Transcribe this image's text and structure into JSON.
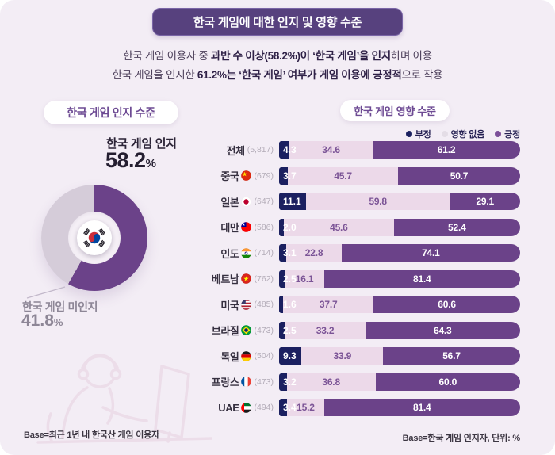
{
  "banner": {
    "title": "한국 게임에 대한 인지 및 영향 수준"
  },
  "subtitle": {
    "line1": [
      {
        "text": "한국 게임 이용자 중 ",
        "bold": false
      },
      {
        "text": "과반 수 이상(58.2%)이 ‘한국 게임’을 인지",
        "bold": true
      },
      {
        "text": "하며 이용",
        "bold": false
      }
    ],
    "line2": [
      {
        "text": "한국 게임을 인지한 ",
        "bold": false
      },
      {
        "text": "61.2%는 ‘한국 게임’ 여부가 게임 이용에 긍정적",
        "bold": true
      },
      {
        "text": "으로 작용",
        "bold": false
      }
    ]
  },
  "left": {
    "header": "한국 게임 인지 수준",
    "donut": {
      "aware_label": "한국 게임 인지",
      "aware_value": "58.2",
      "unaware_label": "한국 게임 미인지",
      "unaware_value": "41.8",
      "percent_sign": "%",
      "aware_pct": 58.2,
      "unaware_pct": 41.8,
      "center_icon": "korea-flag-icon"
    },
    "base_note": "Base=최근 1년 내 한국산 게임 이용자"
  },
  "right": {
    "header": "한국 게임 영향 수준",
    "legend": [
      {
        "label": "부정",
        "color": "#1b2060"
      },
      {
        "label": "영향 없음",
        "color": "#e4dde6"
      },
      {
        "label": "긍정",
        "color": "#7c4f99"
      }
    ],
    "rows": [
      {
        "label": "전체",
        "flag": null,
        "count": "(5,817)",
        "values": [
          4.3,
          34.6,
          61.2
        ]
      },
      {
        "label": "중국",
        "flag": "china",
        "count": "(679)",
        "values": [
          3.7,
          45.7,
          50.7
        ]
      },
      {
        "label": "일본",
        "flag": "japan",
        "count": "(647)",
        "values": [
          11.1,
          59.8,
          29.1
        ]
      },
      {
        "label": "대만",
        "flag": "taiwan",
        "count": "(586)",
        "values": [
          2.0,
          45.6,
          52.4
        ]
      },
      {
        "label": "인도",
        "flag": "india",
        "count": "(714)",
        "values": [
          3.1,
          22.8,
          74.1
        ]
      },
      {
        "label": "베트남",
        "flag": "vietnam",
        "count": "(762)",
        "values": [
          2.5,
          16.1,
          81.4
        ]
      },
      {
        "label": "미국",
        "flag": "usa",
        "count": "(485)",
        "values": [
          1.6,
          37.7,
          60.6
        ]
      },
      {
        "label": "브라질",
        "flag": "brazil",
        "count": "(473)",
        "values": [
          2.5,
          33.2,
          64.3
        ]
      },
      {
        "label": "독일",
        "flag": "germany",
        "count": "(504)",
        "values": [
          9.3,
          33.9,
          56.7
        ]
      },
      {
        "label": "프랑스",
        "flag": "france",
        "count": "(473)",
        "values": [
          3.2,
          36.8,
          60.0
        ]
      },
      {
        "label": "UAE",
        "flag": "uae",
        "count": "(494)",
        "values": [
          3.4,
          15.2,
          81.4
        ]
      }
    ],
    "base_note": "Base=한국 게임 인지자, 단위: %"
  },
  "colors": {
    "negative": "#1b2060",
    "no_effect": "#ecd9e9",
    "positive": "#6b4289",
    "donut_aware": "#6b4289",
    "donut_unaware": "#d5ccd9",
    "banner_bg": "#57417e",
    "accent_purple": "#6d4a93"
  },
  "chart_data": [
    {
      "type": "pie",
      "title": "한국 게임 인지 수준",
      "labels": [
        "한국 게임 인지",
        "한국 게임 미인지"
      ],
      "values": [
        58.2,
        41.8
      ],
      "unit": "%",
      "note": "donut with Korean flag in center"
    },
    {
      "type": "bar",
      "orientation": "horizontal",
      "stacked": true,
      "title": "한국 게임 영향 수준",
      "categories": [
        "전체 (5,817)",
        "중국 (679)",
        "일본 (647)",
        "대만 (586)",
        "인도 (714)",
        "베트남 (762)",
        "미국 (485)",
        "브라질 (473)",
        "독일 (504)",
        "프랑스 (473)",
        "UAE (494)"
      ],
      "series": [
        {
          "name": "부정",
          "values": [
            4.3,
            3.7,
            11.1,
            2.0,
            3.1,
            2.5,
            1.6,
            2.5,
            9.3,
            3.2,
            3.4
          ]
        },
        {
          "name": "영향 없음",
          "values": [
            34.6,
            45.7,
            59.8,
            45.6,
            22.8,
            16.1,
            37.7,
            33.2,
            33.9,
            36.8,
            15.2
          ]
        },
        {
          "name": "긍정",
          "values": [
            61.2,
            50.7,
            29.1,
            52.4,
            74.1,
            81.4,
            60.6,
            64.3,
            56.7,
            60.0,
            81.4
          ]
        }
      ],
      "unit": "%",
      "xlim": [
        0,
        100
      ],
      "legend_position": "top-right"
    }
  ]
}
